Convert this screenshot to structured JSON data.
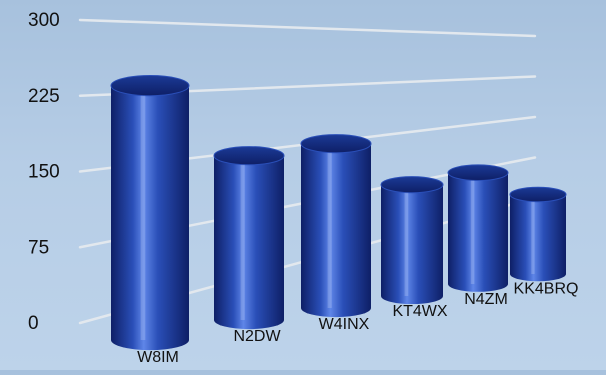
{
  "chart_data": {
    "type": "bar",
    "categories": [
      "W8IM",
      "N2DW",
      "W4INX",
      "KT4WX",
      "N4ZM",
      "KK4BRQ"
    ],
    "values": [
      240,
      155,
      155,
      105,
      105,
      75
    ],
    "yticks": [
      "0",
      "75",
      "150",
      "225",
      "300"
    ],
    "ylim": [
      0,
      300
    ],
    "title": "",
    "xlabel": "",
    "ylabel": "",
    "grid": true,
    "legend": "none",
    "style": "3d-cylinder",
    "colors": {
      "bar_dark": "#0e1f66",
      "bar_mid": "#2a4fb8",
      "bar_light": "#5f86e8",
      "bar_top": "#1b3a96",
      "grid": "#e2e8ee",
      "text": "#111111",
      "background_top": "#a7c1dd",
      "background_bottom": "#bdd3ea"
    }
  }
}
